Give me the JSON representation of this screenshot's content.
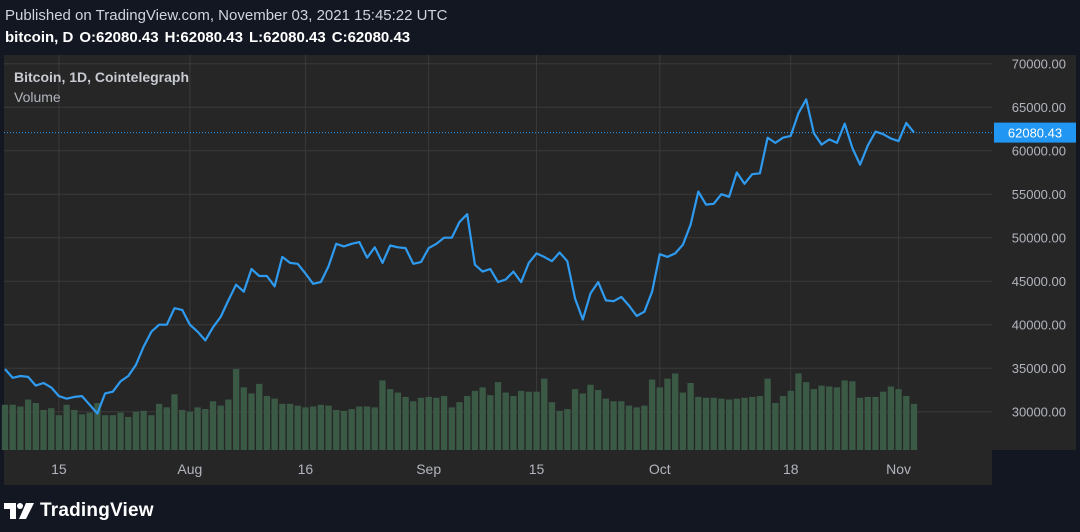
{
  "header": {
    "published": "Published on TradingView.com, November 03, 2021 15:45:22 UTC",
    "symbol": "bitcoin, D",
    "o_label": "O:",
    "o_value": "62080.43",
    "h_label": "H:",
    "h_value": "62080.43",
    "l_label": "L:",
    "l_value": "62080.43",
    "c_label": "C:",
    "c_value": "62080.43"
  },
  "legend": {
    "title": "Bitcoin, 1D, Cointelegraph",
    "volume_label": "Volume"
  },
  "footer": {
    "brand": "TradingView",
    "logo_icon": "tradingview-logo-icon"
  },
  "colors": {
    "background": "#131722",
    "plot_background": "#262626",
    "grid": "#3a3a3a",
    "line": "#2f9bf0",
    "volume": "#3a5a46",
    "price_tag": "#2196f3"
  },
  "chart_data": {
    "type": "line",
    "x": [
      "2021-07-08",
      "2021-07-09",
      "2021-07-10",
      "2021-07-11",
      "2021-07-12",
      "2021-07-13",
      "2021-07-14",
      "2021-07-15",
      "2021-07-16",
      "2021-07-17",
      "2021-07-18",
      "2021-07-19",
      "2021-07-20",
      "2021-07-21",
      "2021-07-22",
      "2021-07-23",
      "2021-07-24",
      "2021-07-25",
      "2021-07-26",
      "2021-07-27",
      "2021-07-28",
      "2021-07-29",
      "2021-07-30",
      "2021-07-31",
      "2021-08-01",
      "2021-08-02",
      "2021-08-03",
      "2021-08-04",
      "2021-08-05",
      "2021-08-06",
      "2021-08-07",
      "2021-08-08",
      "2021-08-09",
      "2021-08-10",
      "2021-08-11",
      "2021-08-12",
      "2021-08-13",
      "2021-08-14",
      "2021-08-15",
      "2021-08-16",
      "2021-08-17",
      "2021-08-18",
      "2021-08-19",
      "2021-08-20",
      "2021-08-21",
      "2021-08-22",
      "2021-08-23",
      "2021-08-24",
      "2021-08-25",
      "2021-08-26",
      "2021-08-27",
      "2021-08-28",
      "2021-08-29",
      "2021-08-30",
      "2021-08-31",
      "2021-09-01",
      "2021-09-02",
      "2021-09-03",
      "2021-09-04",
      "2021-09-05",
      "2021-09-06",
      "2021-09-07",
      "2021-09-08",
      "2021-09-09",
      "2021-09-10",
      "2021-09-11",
      "2021-09-12",
      "2021-09-13",
      "2021-09-14",
      "2021-09-15",
      "2021-09-16",
      "2021-09-17",
      "2021-09-18",
      "2021-09-19",
      "2021-09-20",
      "2021-09-21",
      "2021-09-22",
      "2021-09-23",
      "2021-09-24",
      "2021-09-25",
      "2021-09-26",
      "2021-09-27",
      "2021-09-28",
      "2021-09-29",
      "2021-09-30",
      "2021-10-01",
      "2021-10-02",
      "2021-10-03",
      "2021-10-04",
      "2021-10-05",
      "2021-10-06",
      "2021-10-07",
      "2021-10-08",
      "2021-10-09",
      "2021-10-10",
      "2021-10-11",
      "2021-10-12",
      "2021-10-13",
      "2021-10-14",
      "2021-10-15",
      "2021-10-16",
      "2021-10-17",
      "2021-10-18",
      "2021-10-19",
      "2021-10-20",
      "2021-10-21",
      "2021-10-22",
      "2021-10-23",
      "2021-10-24",
      "2021-10-25",
      "2021-10-26",
      "2021-10-27",
      "2021-10-28",
      "2021-10-29",
      "2021-10-30",
      "2021-10-31",
      "2021-11-01",
      "2021-11-02",
      "2021-11-03"
    ],
    "price": [
      34900,
      33900,
      34100,
      34000,
      33000,
      33300,
      32800,
      31800,
      31500,
      31700,
      31800,
      30800,
      29800,
      32100,
      32300,
      33500,
      34100,
      35400,
      37500,
      39200,
      40000,
      40000,
      41900,
      41700,
      40000,
      39200,
      38200,
      39700,
      40900,
      42800,
      44600,
      43800,
      46400,
      45600,
      45600,
      44400,
      47800,
      47100,
      47000,
      45900,
      44700,
      44900,
      46700,
      49300,
      49000,
      49300,
      49500,
      47700,
      48900,
      47100,
      49100,
      48900,
      48800,
      47000,
      47200,
      48800,
      49300,
      50000,
      50000,
      51800,
      52700,
      46900,
      46100,
      46400,
      44900,
      45200,
      46100,
      44900,
      47100,
      48200,
      47800,
      47300,
      48300,
      47300,
      43000,
      40600,
      43600,
      44900,
      42800,
      42700,
      43200,
      42200,
      41000,
      41500,
      43800,
      48100,
      47800,
      48200,
      49200,
      51500,
      55300,
      53800,
      53900,
      55000,
      54700,
      57500,
      56200,
      57300,
      57400,
      61500,
      60900,
      61500,
      61700,
      64300,
      65900,
      62000,
      60700,
      61300,
      60900,
      63100,
      60300,
      58400,
      60600,
      62200,
      61900,
      61400,
      61100,
      63200,
      62080
    ],
    "volume": [
      30800,
      30800,
      30600,
      31400,
      31000,
      30200,
      30400,
      29600,
      30800,
      30200,
      29700,
      29900,
      31000,
      29600,
      29600,
      29900,
      29400,
      30000,
      30100,
      29600,
      30900,
      30500,
      32000,
      30200,
      30000,
      30500,
      30300,
      31200,
      30700,
      31400,
      34900,
      32800,
      32100,
      33200,
      31800,
      31500,
      30900,
      30900,
      30700,
      30500,
      30600,
      30800,
      30700,
      30200,
      30100,
      30300,
      30600,
      30600,
      30500,
      33600,
      32600,
      32200,
      31700,
      31200,
      31600,
      31700,
      31600,
      31800,
      30500,
      31100,
      31800,
      32400,
      32800,
      31900,
      33400,
      32200,
      31800,
      32400,
      32300,
      32300,
      33800,
      31100,
      30100,
      30300,
      32600,
      32100,
      33100,
      32500,
      31500,
      31200,
      31200,
      30700,
      30500,
      30700,
      33700,
      32800,
      33800,
      34400,
      32200,
      33300,
      31700,
      31600,
      31600,
      31500,
      31400,
      31500,
      31600,
      31700,
      31800,
      33800,
      31000,
      31800,
      32400,
      34400,
      33400,
      32600,
      33000,
      32900,
      32800,
      33600,
      33500,
      31600,
      31700,
      31700,
      32300,
      32900,
      32600,
      31800,
      30900
    ],
    "ylim": [
      25600,
      71000
    ],
    "y_ticks": [
      "70000.00",
      "65000.00",
      "60000.00",
      "55000.00",
      "50000.00",
      "45000.00",
      "40000.00",
      "35000.00",
      "30000.00"
    ],
    "x_tick_labels": [
      {
        "label": "15",
        "date": "2021-07-15"
      },
      {
        "label": "Aug",
        "date": "2021-08-01"
      },
      {
        "label": "16",
        "date": "2021-08-16"
      },
      {
        "label": "Sep",
        "date": "2021-09-01"
      },
      {
        "label": "15",
        "date": "2021-09-15"
      },
      {
        "label": "Oct",
        "date": "2021-10-01"
      },
      {
        "label": "18",
        "date": "2021-10-18"
      },
      {
        "label": "Nov",
        "date": "2021-11-01"
      }
    ],
    "last_price": "62080.43",
    "grid": true
  }
}
